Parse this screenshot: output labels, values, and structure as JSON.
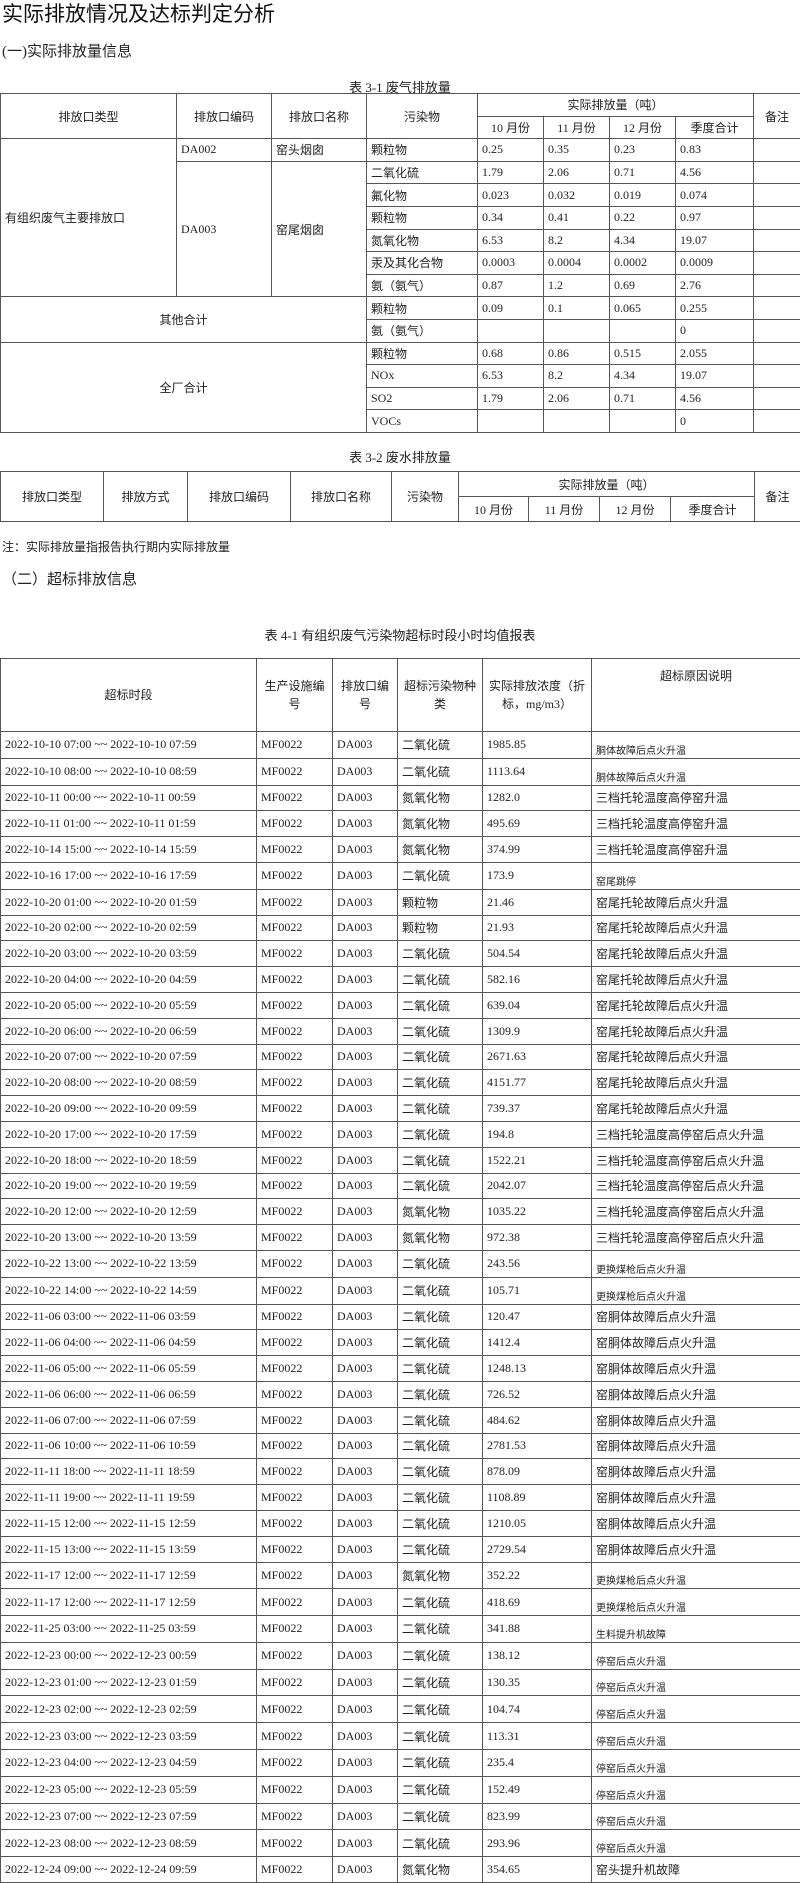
{
  "title": "实际排放情况及达标判定分析",
  "section1": "(一)实际排放量信息",
  "table31": {
    "caption": "表 3-1 废气排放量",
    "headers": {
      "type": "排放口类型",
      "code": "排放口编码",
      "name": "排放口名称",
      "pollutant": "污染物",
      "actual": "实际排放量（吨）",
      "oct": "10 月份",
      "nov": "11 月份",
      "dec": "12 月份",
      "total": "季度合计",
      "note": "备注"
    },
    "groups": [
      {
        "type": "有组织废气主要排放口",
        "outlets": [
          {
            "code": "DA002",
            "name": "窑头烟囱",
            "rows": [
              [
                "颗粒物",
                "0.25",
                "0.35",
                "0.23",
                "0.83",
                ""
              ]
            ]
          },
          {
            "code": "DA003",
            "name": "窑尾烟囱",
            "rows": [
              [
                "二氧化硫",
                "1.79",
                "2.06",
                "0.71",
                "4.56",
                ""
              ],
              [
                "氟化物",
                "0.023",
                "0.032",
                "0.019",
                "0.074",
                ""
              ],
              [
                "颗粒物",
                "0.34",
                "0.41",
                "0.22",
                "0.97",
                ""
              ],
              [
                "氮氧化物",
                "6.53",
                "8.2",
                "4.34",
                "19.07",
                ""
              ],
              [
                "汞及其化合物",
                "0.0003",
                "0.0004",
                "0.0002",
                "0.0009",
                ""
              ],
              [
                "氨（氨气）",
                "0.87",
                "1.2",
                "0.69",
                "2.76",
                ""
              ]
            ]
          }
        ]
      },
      {
        "type": "其他合计",
        "rows": [
          [
            "颗粒物",
            "0.09",
            "0.1",
            "0.065",
            "0.255",
            ""
          ],
          [
            "氨（氨气）",
            "",
            "",
            "",
            "0",
            ""
          ]
        ]
      },
      {
        "type": "全厂合计",
        "rows": [
          [
            "颗粒物",
            "0.68",
            "0.86",
            "0.515",
            "2.055",
            ""
          ],
          [
            "NOx",
            "6.53",
            "8.2",
            "4.34",
            "19.07",
            ""
          ],
          [
            "SO2",
            "1.79",
            "2.06",
            "0.71",
            "4.56",
            ""
          ],
          [
            "VOCs",
            "",
            "",
            "",
            "0",
            ""
          ]
        ]
      }
    ]
  },
  "table32": {
    "caption": "表 3-2 废水排放量",
    "headers": {
      "type": "排放口类型",
      "method": "排放方式",
      "code": "排放口编码",
      "name": "排放口名称",
      "pollutant": "污染物",
      "actual": "实际排放量（吨）",
      "oct": "10 月份",
      "nov": "11 月份",
      "dec": "12 月份",
      "total": "季度合计",
      "note": "备注"
    }
  },
  "note": "注：实际排放量指报告执行期内实际排放量",
  "section2": "（二）超标排放信息",
  "table41": {
    "caption": "表 4-1 有组织废气污染物超标时段小时均值报表",
    "headers": [
      "超标时段",
      "生产设施编号",
      "排放口编号",
      "超标污染物种类",
      "实际排放浓度（折标，mg/m3）",
      "超标原因说明"
    ],
    "rows": [
      [
        "2022-10-10 07:00 ~~ 2022-10-10 07:59",
        "MF0022",
        "DA003",
        "二氧化硫",
        "1985.85",
        "胴体故障后点火升温"
      ],
      [
        "2022-10-10 08:00 ~~ 2022-10-10 08:59",
        "MF0022",
        "DA003",
        "二氧化硫",
        "1113.64",
        "胴体故障后点火升温"
      ],
      [
        "2022-10-11 00:00 ~~ 2022-10-11 00:59",
        "MF0022",
        "DA003",
        "氮氧化物",
        "1282.0",
        "三档托轮温度高停窑升温"
      ],
      [
        "2022-10-11 01:00 ~~ 2022-10-11 01:59",
        "MF0022",
        "DA003",
        "氮氧化物",
        "495.69",
        "三档托轮温度高停窑升温"
      ],
      [
        "2022-10-14 15:00 ~~ 2022-10-14 15:59",
        "MF0022",
        "DA003",
        "氮氧化物",
        "374.99",
        "三档托轮温度高停窑升温"
      ],
      [
        "2022-10-16 17:00 ~~ 2022-10-16 17:59",
        "MF0022",
        "DA003",
        "二氧化硫",
        "173.9",
        "窑尾跳停"
      ],
      [
        "2022-10-20 01:00 ~~ 2022-10-20 01:59",
        "MF0022",
        "DA003",
        "颗粒物",
        "21.46",
        "窑尾托轮故障后点火升温"
      ],
      [
        "2022-10-20 02:00 ~~ 2022-10-20 02:59",
        "MF0022",
        "DA003",
        "颗粒物",
        "21.93",
        "窑尾托轮故障后点火升温"
      ],
      [
        "2022-10-20 03:00 ~~ 2022-10-20 03:59",
        "MF0022",
        "DA003",
        "二氧化硫",
        "504.54",
        "窑尾托轮故障后点火升温"
      ],
      [
        "2022-10-20 04:00 ~~ 2022-10-20 04:59",
        "MF0022",
        "DA003",
        "二氧化硫",
        "582.16",
        "窑尾托轮故障后点火升温"
      ],
      [
        "2022-10-20 05:00 ~~ 2022-10-20 05:59",
        "MF0022",
        "DA003",
        "二氧化硫",
        "639.04",
        "窑尾托轮故障后点火升温"
      ],
      [
        "2022-10-20 06:00 ~~ 2022-10-20 06:59",
        "MF0022",
        "DA003",
        "二氧化硫",
        "1309.9",
        "窑尾托轮故障后点火升温"
      ],
      [
        "2022-10-20 07:00 ~~ 2022-10-20 07:59",
        "MF0022",
        "DA003",
        "二氧化硫",
        "2671.63",
        "窑尾托轮故障后点火升温"
      ],
      [
        "2022-10-20 08:00 ~~ 2022-10-20 08:59",
        "MF0022",
        "DA003",
        "二氧化硫",
        "4151.77",
        "窑尾托轮故障后点火升温"
      ],
      [
        "2022-10-20 09:00 ~~ 2022-10-20 09:59",
        "MF0022",
        "DA003",
        "二氧化硫",
        "739.37",
        "窑尾托轮故障后点火升温"
      ],
      [
        "2022-10-20 17:00 ~~ 2022-10-20 17:59",
        "MF0022",
        "DA003",
        "二氧化硫",
        "194.8",
        "三档托轮温度高停窑后点火升温"
      ],
      [
        "2022-10-20 18:00 ~~ 2022-10-20 18:59",
        "MF0022",
        "DA003",
        "二氧化硫",
        "1522.21",
        "三档托轮温度高停窑后点火升温"
      ],
      [
        "2022-10-20 19:00 ~~ 2022-10-20 19:59",
        "MF0022",
        "DA003",
        "二氧化硫",
        "2042.07",
        "三档托轮温度高停窑后点火升温"
      ],
      [
        "2022-10-20 12:00 ~~ 2022-10-20 12:59",
        "MF0022",
        "DA003",
        "氮氧化物",
        "1035.22",
        "三档托轮温度高停窑后点火升温"
      ],
      [
        "2022-10-20 13:00 ~~ 2022-10-20 13:59",
        "MF0022",
        "DA003",
        "氮氧化物",
        "972.38",
        "三档托轮温度高停窑后点火升温"
      ],
      [
        "2022-10-22 13:00 ~~ 2022-10-22 13:59",
        "MF0022",
        "DA003",
        "二氧化硫",
        "243.56",
        "更换煤枪后点火升温"
      ],
      [
        "2022-10-22 14:00 ~~ 2022-10-22 14:59",
        "MF0022",
        "DA003",
        "二氧化硫",
        "105.71",
        "更换煤枪后点火升温"
      ],
      [
        "2022-11-06 03:00 ~~ 2022-11-06 03:59",
        "MF0022",
        "DA003",
        "二氧化硫",
        "120.47",
        "窑胴体故障后点火升温"
      ],
      [
        "2022-11-06 04:00 ~~ 2022-11-06 04:59",
        "MF0022",
        "DA003",
        "二氧化硫",
        "1412.4",
        "窑胴体故障后点火升温"
      ],
      [
        "2022-11-06 05:00 ~~ 2022-11-06 05:59",
        "MF0022",
        "DA003",
        "二氧化硫",
        "1248.13",
        "窑胴体故障后点火升温"
      ],
      [
        "2022-11-06 06:00 ~~ 2022-11-06 06:59",
        "MF0022",
        "DA003",
        "二氧化硫",
        "726.52",
        "窑胴体故障后点火升温"
      ],
      [
        "2022-11-06 07:00 ~~ 2022-11-06 07:59",
        "MF0022",
        "DA003",
        "二氧化硫",
        "484.62",
        "窑胴体故障后点火升温"
      ],
      [
        "2022-11-06 10:00 ~~ 2022-11-06 10:59",
        "MF0022",
        "DA003",
        "二氧化硫",
        "2781.53",
        "窑胴体故障后点火升温"
      ],
      [
        "2022-11-11 18:00 ~~ 2022-11-11 18:59",
        "MF0022",
        "DA003",
        "二氧化硫",
        "878.09",
        "窑胴体故障后点火升温"
      ],
      [
        "2022-11-11 19:00 ~~ 2022-11-11 19:59",
        "MF0022",
        "DA003",
        "二氧化硫",
        "1108.89",
        "窑胴体故障后点火升温"
      ],
      [
        "2022-11-15 12:00 ~~ 2022-11-15 12:59",
        "MF0022",
        "DA003",
        "二氧化硫",
        "1210.05",
        "窑胴体故障后点火升温"
      ],
      [
        "2022-11-15 13:00 ~~ 2022-11-15 13:59",
        "MF0022",
        "DA003",
        "二氧化硫",
        "2729.54",
        "窑胴体故障后点火升温"
      ],
      [
        "2022-11-17 12:00 ~~ 2022-11-17 12:59",
        "MF0022",
        "DA003",
        "氮氧化物",
        "352.22",
        "更换煤枪后点火升温"
      ],
      [
        "2022-11-17 12:00 ~~ 2022-11-17 12:59",
        "MF0022",
        "DA003",
        "二氧化硫",
        "418.69",
        "更换煤枪后点火升温"
      ],
      [
        "2022-11-25 03:00 ~~ 2022-11-25 03:59",
        "MF0022",
        "DA003",
        "二氧化硫",
        "341.88",
        "生料提升机故障"
      ],
      [
        "2022-12-23 00:00 ~~ 2022-12-23 00:59",
        "MF0022",
        "DA003",
        "二氧化硫",
        "138.12",
        "停窑后点火升温"
      ],
      [
        "2022-12-23 01:00 ~~ 2022-12-23 01:59",
        "MF0022",
        "DA003",
        "二氧化硫",
        "130.35",
        "停窑后点火升温"
      ],
      [
        "2022-12-23 02:00 ~~ 2022-12-23 02:59",
        "MF0022",
        "DA003",
        "二氧化硫",
        "104.74",
        "停窑后点火升温"
      ],
      [
        "2022-12-23 03:00 ~~ 2022-12-23 03:59",
        "MF0022",
        "DA003",
        "二氧化硫",
        "113.31",
        "停窑后点火升温"
      ],
      [
        "2022-12-23 04:00 ~~ 2022-12-23 04:59",
        "MF0022",
        "DA003",
        "二氧化硫",
        "235.4",
        "停窑后点火升温"
      ],
      [
        "2022-12-23 05:00 ~~ 2022-12-23 05:59",
        "MF0022",
        "DA003",
        "二氧化硫",
        "152.49",
        "停窑后点火升温"
      ],
      [
        "2022-12-23 07:00 ~~ 2022-12-23 07:59",
        "MF0022",
        "DA003",
        "二氧化硫",
        "823.99",
        "停窑后点火升温"
      ],
      [
        "2022-12-23 08:00 ~~ 2022-12-23 08:59",
        "MF0022",
        "DA003",
        "二氧化硫",
        "293.96",
        "停窑后点火升温"
      ],
      [
        "2022-12-24 09:00 ~~ 2022-12-24 09:59",
        "MF0022",
        "DA003",
        "氮氧化物",
        "354.65",
        "窑头提升机故障"
      ]
    ]
  }
}
